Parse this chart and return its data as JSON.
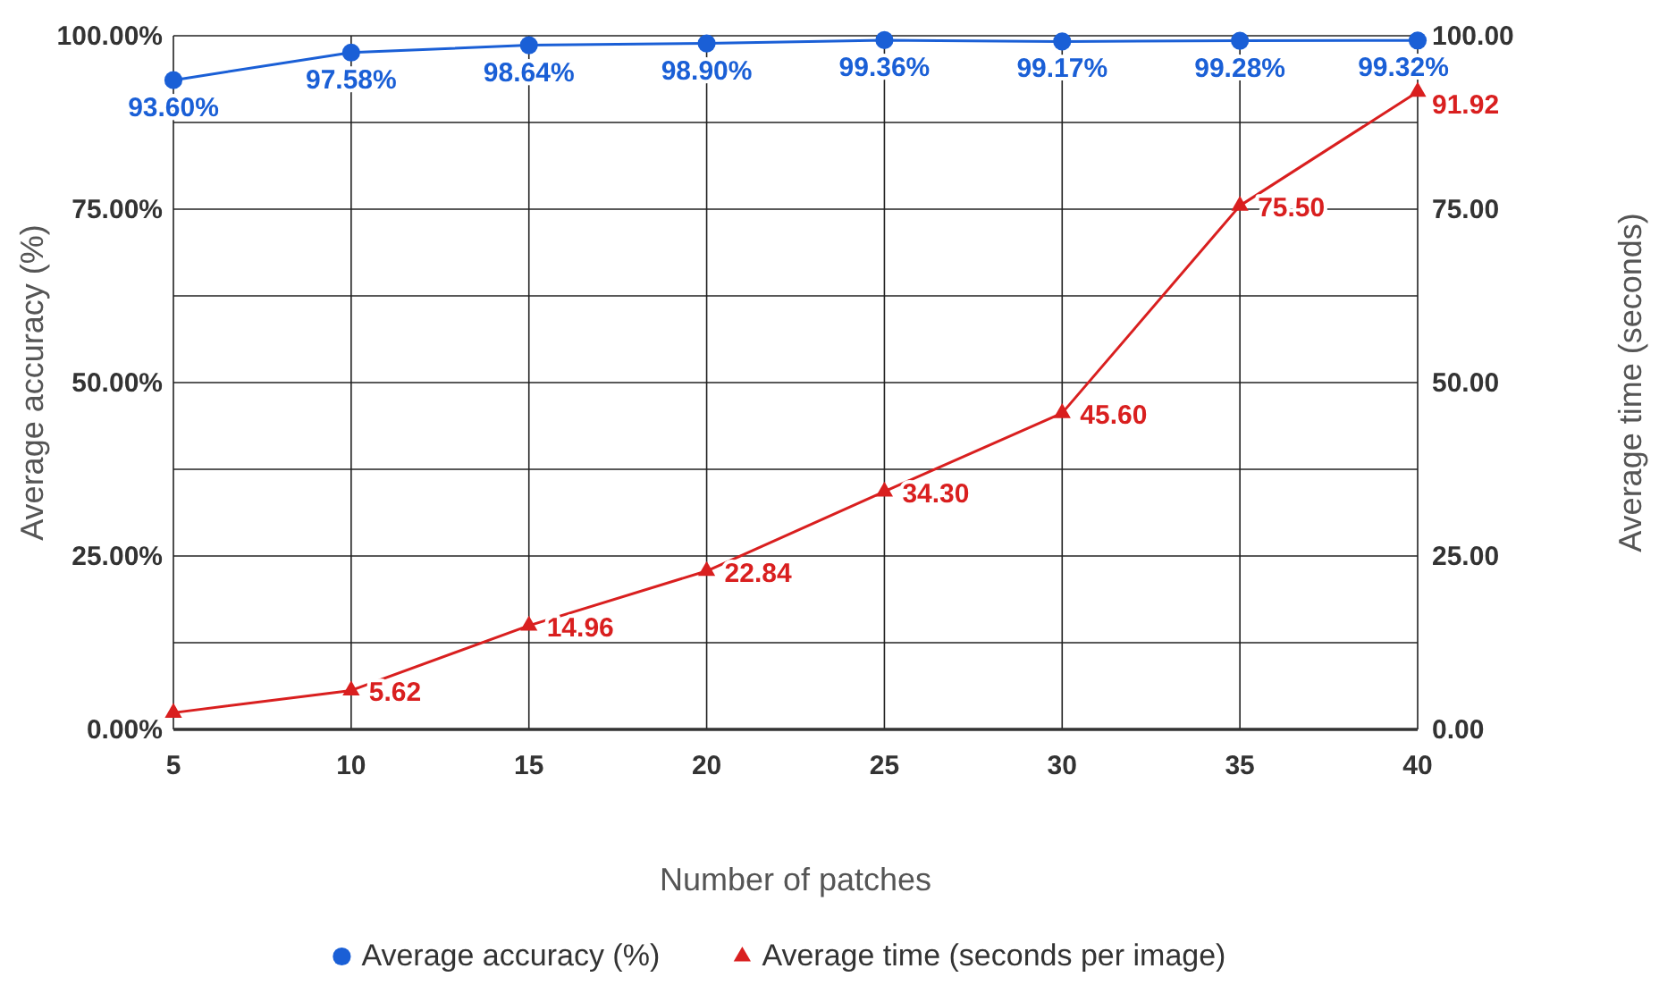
{
  "chart_data": {
    "type": "line",
    "xlabel": "Number of patches",
    "ylabel": "Average accuracy (%)",
    "y2label": "Average time (seconds)",
    "x": [
      5,
      10,
      15,
      20,
      25,
      30,
      35,
      40
    ],
    "xlim": [
      5,
      40
    ],
    "xticks": [
      5,
      10,
      15,
      20,
      25,
      30,
      35,
      40
    ],
    "ylim": [
      0,
      100
    ],
    "yticks": [
      {
        "value": 0,
        "label": "0.00%"
      },
      {
        "value": 12.5,
        "label": null
      },
      {
        "value": 25,
        "label": "25.00%"
      },
      {
        "value": 37.5,
        "label": null
      },
      {
        "value": 50,
        "label": "50.00%"
      },
      {
        "value": 62.5,
        "label": null
      },
      {
        "value": 75,
        "label": "75.00%"
      },
      {
        "value": 87.5,
        "label": null
      },
      {
        "value": 100,
        "label": "100.00%"
      }
    ],
    "y2lim": [
      0,
      100
    ],
    "y2ticks": [
      {
        "value": 0,
        "label": "0.00"
      },
      {
        "value": 25,
        "label": "25.00"
      },
      {
        "value": 50,
        "label": "50.00"
      },
      {
        "value": 75,
        "label": "75.00"
      },
      {
        "value": 100,
        "label": "100.00"
      }
    ],
    "grid": true,
    "legend": "bottom",
    "series": [
      {
        "name": "Average accuracy (%)",
        "color": "#1a5fd6",
        "marker": "circle",
        "values": [
          93.6,
          97.58,
          98.64,
          98.9,
          99.36,
          99.17,
          99.28,
          99.32
        ],
        "value_labels": [
          "93.60%",
          "97.58%",
          "98.64%",
          "98.90%",
          "99.36%",
          "99.17%",
          "99.28%",
          "99.32%"
        ]
      },
      {
        "name": "Average time (seconds per image)",
        "color": "#d91f1f",
        "marker": "triangle",
        "axis": "y2",
        "values": [
          2.4,
          5.62,
          14.96,
          22.84,
          34.3,
          45.6,
          75.5,
          91.92
        ],
        "value_labels": [
          null,
          "5.62",
          "14.96",
          "22.84",
          "34.30",
          "45.60",
          "75.50",
          "91.92"
        ]
      }
    ]
  }
}
